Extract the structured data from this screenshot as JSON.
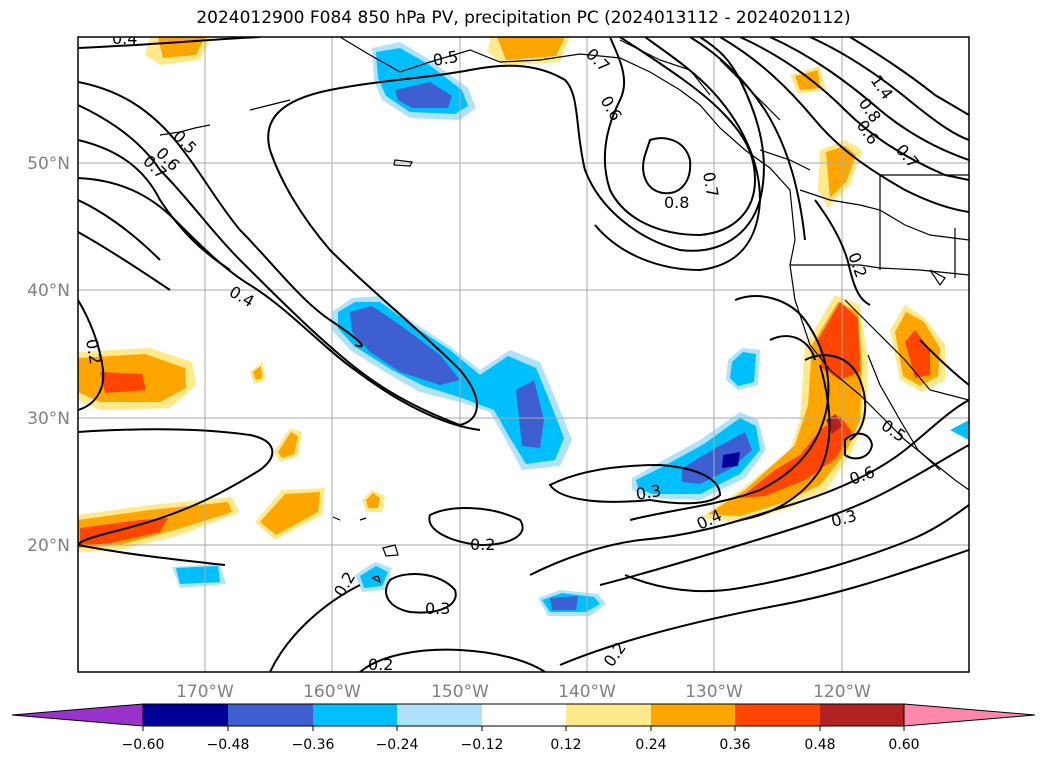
{
  "title": "2024012900 F084 850 hPa PV, precipitation PC (2024013112 - 2024020112)",
  "map": {
    "lat_gridlines": [
      "50°N",
      "40°N",
      "30°N",
      "20°N"
    ],
    "lon_gridlines": [
      "170°W",
      "160°W",
      "150°W",
      "140°W",
      "130°W",
      "120°W"
    ],
    "extent": {
      "lon": [
        -180,
        -110
      ],
      "lat": [
        10,
        60
      ]
    },
    "grid": true
  },
  "contour_labels": [
    "0.4",
    "0.5",
    "0.5",
    "0.6",
    "0.7",
    "0.6",
    "0.7",
    "0.8",
    "0.7",
    "1.4",
    "0.8",
    "0.6",
    "0.7",
    "0.2",
    "0.4",
    "0.2",
    "0.5",
    "0.6",
    "0.3",
    "0.3",
    "0.4",
    "0.2",
    "0.2",
    "0.3",
    "0.2",
    "0.2"
  ],
  "colorbar": {
    "ticks": [
      "−0.60",
      "−0.48",
      "−0.36",
      "−0.24",
      "−0.12",
      "0.12",
      "0.24",
      "0.36",
      "0.48",
      "0.60"
    ],
    "colors": [
      "#9933cc",
      "#000099",
      "#3d5fd1",
      "#00bfff",
      "#aee3fb",
      "#ffffff",
      "#ffe98a",
      "#ffa500",
      "#ff4500",
      "#b22222",
      "#ff88aa"
    ],
    "extend": "both"
  },
  "colors": {
    "neg_strong": "#3d5fd1",
    "neg_mid": "#00bfff",
    "neg_light": "#aee3fb",
    "pos_light": "#ffe98a",
    "pos_mid": "#ffa500",
    "pos_strong": "#ff4500",
    "pos_max": "#b22222",
    "neg_max": "#000099"
  }
}
